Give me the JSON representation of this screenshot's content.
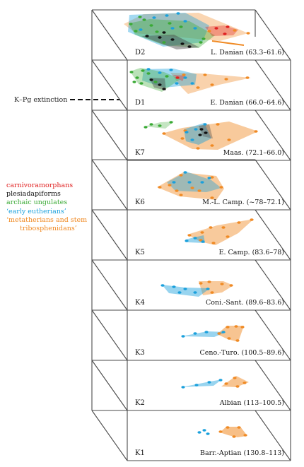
{
  "extinction_label": "K–Pg extinction",
  "legend": {
    "carnivoramorphans": {
      "label": "carnivoramorphans",
      "color": "#e02020"
    },
    "plesiadapiforms": {
      "label": "plesiadapiforms",
      "color": "#111111"
    },
    "archaic_ungulates": {
      "label": "archaic ungulates",
      "color": "#3aaa35"
    },
    "early_eutherians": {
      "label": "‘early eutherians’",
      "color": "#1aa0dc"
    },
    "metatherians_line1": {
      "label": "‘metatherians and stem",
      "color": "#f08a24"
    },
    "metatherians_line2": {
      "label": "tribosphenidans’",
      "color": "#f08a24"
    }
  },
  "slices": [
    {
      "code": "D2",
      "name": "L. Danian (63.3–61.6)"
    },
    {
      "code": "D1",
      "name": "E. Danian (66.0–64.6)"
    },
    {
      "code": "K7",
      "name": "Maas. (72.1–66.0)"
    },
    {
      "code": "K6",
      "name": "M.-L. Camp. (~78–72.1)"
    },
    {
      "code": "K5",
      "name": "E. Camp. (83.6–78)"
    },
    {
      "code": "K4",
      "name": "Coni.-Sant. (89.6–83.6)"
    },
    {
      "code": "K3",
      "name": "Ceno.-Turo. (100.5–89.6)"
    },
    {
      "code": "K2",
      "name": "Albian (113–100.5)"
    },
    {
      "code": "K1",
      "name": "Barr.-Aptian (130.8–113)"
    }
  ]
}
